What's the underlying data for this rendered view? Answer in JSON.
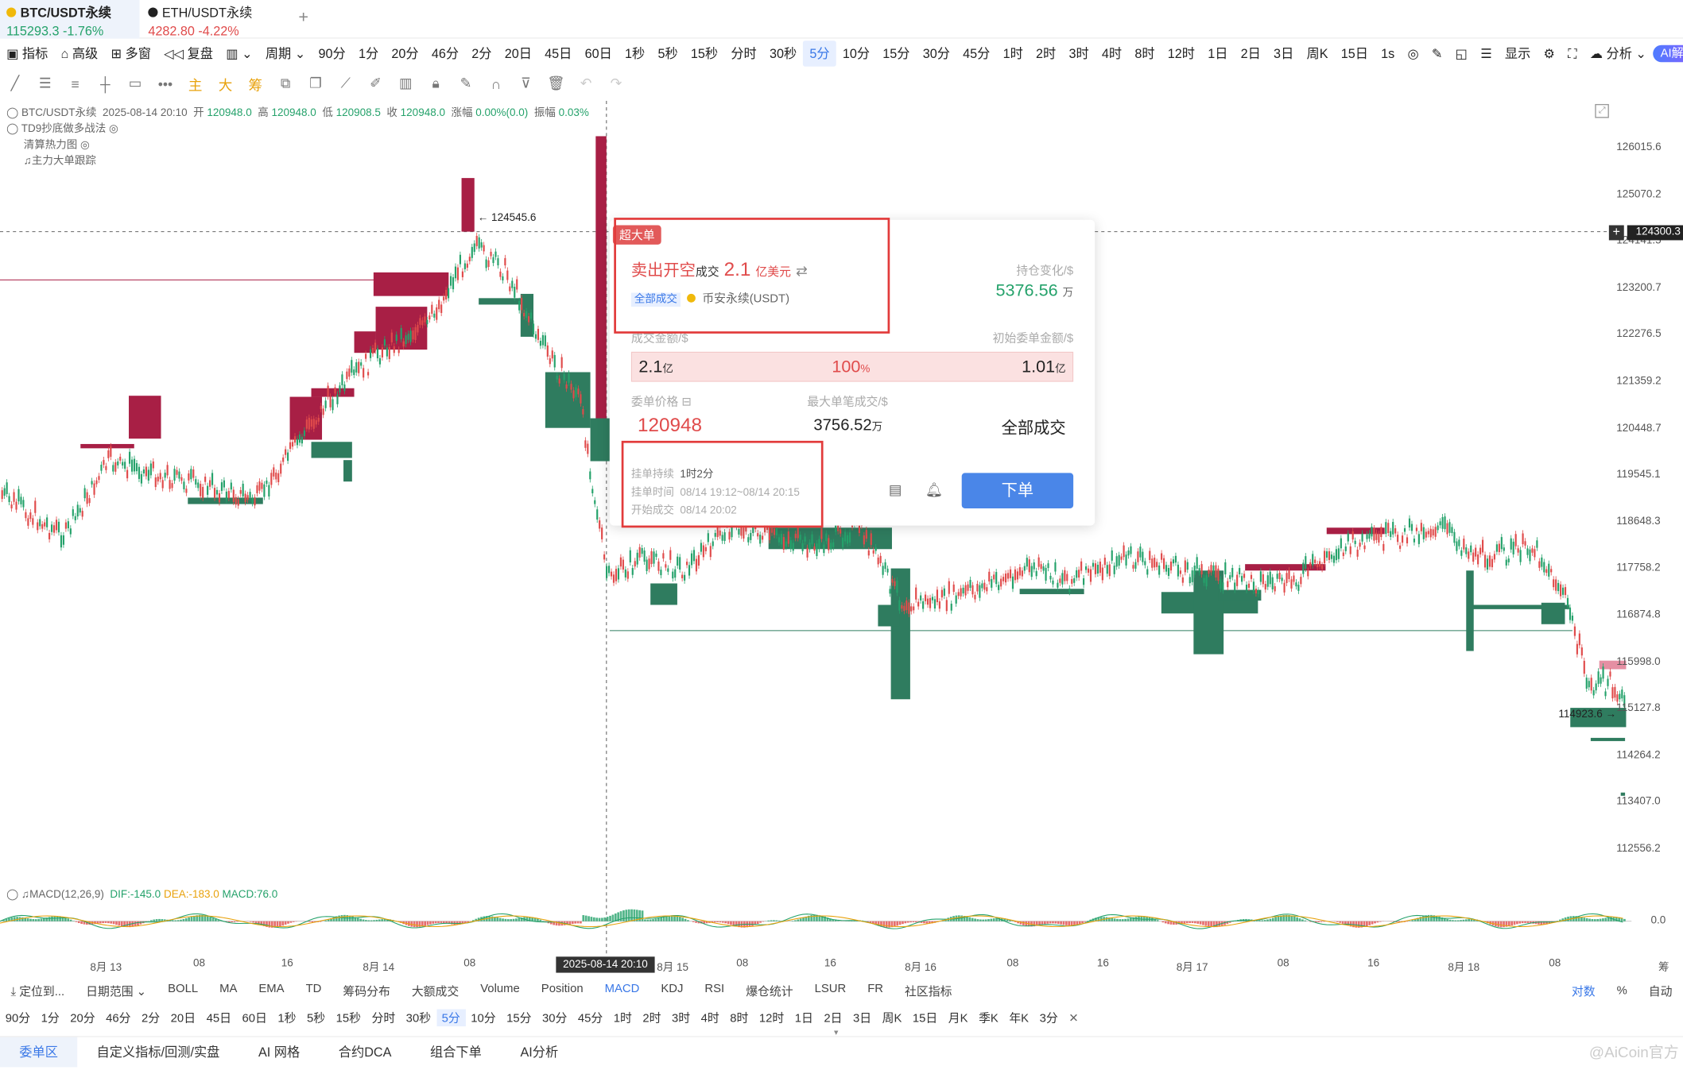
{
  "tabs": [
    {
      "name": "BTC/USDT永续",
      "quote": "115293.3 -1.76%",
      "color": "#25a26b"
    },
    {
      "name": "ETH/USDT永续",
      "quote": "4282.80 -4.22%",
      "color": "#e04b4b"
    }
  ],
  "toolbar": {
    "indicator": "指标",
    "advanced": "高级",
    "multi": "多窗",
    "replay": "复盘",
    "period": "周期",
    "periods": [
      "90分",
      "1分",
      "20分",
      "46分",
      "2分",
      "20日",
      "45日",
      "60日",
      "1秒",
      "5秒",
      "15秒",
      "分时",
      "30秒",
      "5分",
      "10分",
      "15分",
      "30分",
      "45分",
      "1时",
      "2时",
      "3时",
      "4时",
      "8时",
      "12时",
      "1日",
      "2日",
      "3日",
      "周K",
      "15日"
    ],
    "selected_period": "5分",
    "interval": "1s",
    "display": "显示",
    "analysis": "分析",
    "ai": "AI解读"
  },
  "drawbar": {
    "main": "主",
    "big": "大",
    "chip": "筹"
  },
  "chart": {
    "symbol": "BTC/USDT永续",
    "datetime": "2025-08-14 20:10",
    "open_label": "开",
    "open": "120948.0",
    "high_label": "高",
    "high": "120948.0",
    "low_label": "低",
    "low": "120908.5",
    "close_label": "收",
    "close": "120948.0",
    "change_label": "涨幅",
    "change": "0.00%(0.0)",
    "amp_label": "振幅",
    "amp": "0.03%",
    "overlays": [
      "TD9抄底做多战法",
      "清算热力图",
      "主力大单跟踪"
    ],
    "price_axis": [
      "126015.6",
      "125070.2",
      "124141.5",
      "123200.7",
      "122276.5",
      "121359.2",
      "120448.7",
      "119545.1",
      "118648.3",
      "117758.2",
      "116874.8",
      "115998.0",
      "115127.8",
      "114264.2",
      "113407.0",
      "112556.2"
    ],
    "crosshair_price": "124300.3",
    "high_mark": "← 124545.6",
    "low_mark": "114923.6 →",
    "time_axis": [
      "8月 13",
      "08",
      "16",
      "8月 14",
      "08",
      "8月 15",
      "08",
      "16",
      "8月 16",
      "08",
      "16",
      "8月 17",
      "08",
      "16",
      "8月 18",
      "08",
      "筹"
    ],
    "time_cursor": "2025-08-14 20:10",
    "macd": {
      "label": "MACD(12,26,9)",
      "dif": "DIF:-145.0",
      "dea": "DEA:-183.0",
      "macd": "MACD:76.0",
      "zero": "0.0"
    }
  },
  "order_card": {
    "tag": "超大单",
    "action": "卖出开空",
    "deal": "成交",
    "amount": "2.1",
    "unit": "亿美元",
    "badge": "全部成交",
    "exchange": "币安永续(USDT)",
    "pos_change_label": "持仓变化/$",
    "pos_change": "5376.56",
    "pos_change_unit": "万",
    "deal_amt_label": "成交金额/$",
    "init_amt_label": "初始委单金额/$",
    "deal_amt": "2.1",
    "deal_amt_unit": "亿",
    "pct": "100",
    "pct_unit": "%",
    "init_amt": "1.01",
    "init_amt_unit": "亿",
    "fill_ratio": 1.0,
    "price_label": "委单价格",
    "price": "120948",
    "max_label": "最大单笔成交/$",
    "max": "3756.52",
    "max_unit": "万",
    "status": "全部成交",
    "duration_label": "挂单持续",
    "duration": "1时2分",
    "time_label": "挂单时间",
    "time": "08/14 19:12~08/14 20:15",
    "start_label": "开始成交",
    "start": "08/14 20:02",
    "order_btn": "下单"
  },
  "indicators": {
    "locate": "定位到...",
    "range": "日期范围",
    "items": [
      "BOLL",
      "MA",
      "EMA",
      "TD",
      "筹码分布",
      "大额成交",
      "Volume",
      "Position",
      "MACD",
      "KDJ",
      "RSI",
      "爆仓统计",
      "LSUR",
      "FR",
      "社区指标"
    ],
    "selected": "MACD",
    "log": "对数",
    "pct": "%",
    "auto": "自动"
  },
  "period_row": {
    "items": [
      "90分",
      "1分",
      "20分",
      "46分",
      "2分",
      "20日",
      "45日",
      "60日",
      "1秒",
      "5秒",
      "15秒",
      "分时",
      "30秒",
      "5分",
      "10分",
      "15分",
      "30分",
      "45分",
      "1时",
      "2时",
      "3时",
      "4时",
      "8时",
      "12时",
      "1日",
      "2日",
      "3日",
      "周K",
      "15日",
      "月K",
      "季K",
      "年K",
      "3分"
    ],
    "selected": "5分"
  },
  "bottom_tabs": {
    "items": [
      "委单区",
      "自定义指标/回测/实盘",
      "AI 网格",
      "合约DCA",
      "组合下单",
      "AI分析"
    ],
    "selected": "委单区",
    "watermark": "@AiCoin官方"
  },
  "colors": {
    "up": "#2f7c5f",
    "down": "#a81f45",
    "accent": "#3a78e7",
    "red": "#e04b4b"
  }
}
